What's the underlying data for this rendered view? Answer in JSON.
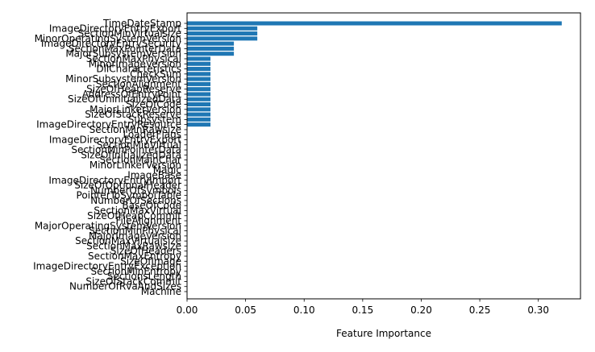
{
  "chart_data": {
    "type": "bar",
    "orientation": "horizontal",
    "title": "",
    "xlabel": "Feature Importance",
    "ylabel": "",
    "xlim": [
      0,
      0.336
    ],
    "xticks": [
      "0.00",
      "0.05",
      "0.10",
      "0.15",
      "0.20",
      "0.25",
      "0.30"
    ],
    "grid": false,
    "bar_color": "#1f77b4",
    "categories": [
      "TimeDateStamp",
      "ImageDirectoryEntryExport",
      "SectionMinVirtualsize",
      "MinorOperatingSystemVersion",
      "ImageDirectoryEntrySecurity",
      "SectionMaxPointerData",
      "MajorSubsystemVersion",
      "SectionMaxPhysical",
      "MinorImageVersion",
      "DllCharacteristics",
      "CheckSum",
      "MinorSubsystemVersion",
      "SectionAlignment",
      "SizeOfHeapReserve",
      "AddressOfEntryPoint",
      "SizeOfUninitializedData",
      "SizeOfCode",
      "MajorLinkerVersion",
      "SizeOfStackReserve",
      "Subsystem",
      "ImageDirectoryEntryResource",
      "SectionMinRawsize",
      "LoaderFlags",
      "ImageDirectoryEntryExport",
      "SectionMinVirtual",
      "SectionMinPointerData",
      "SizeOfInitializedData",
      "SectionMainChar",
      "MinorLinkerVersion",
      "Magic",
      "ImageBase",
      "ImageDirectoryEntryImport",
      "SizeOfOptionalHeader",
      "NumberOfSymbols",
      "PointerToSymbolTable",
      "NumberOfSections",
      "BaseOfCode",
      "SectionMaxVirtual",
      "SizeOfHeapCommit",
      "FileAlignment",
      "MajorOperatingSystemVersion",
      "SectionMinPhysical",
      "MajorImageVersion",
      "SectionMaxVirtualsize",
      "SectionMaxRawsize",
      "SizeOfHeaders",
      "SectionMaxEntropy",
      "SizeOfImage",
      "ImageDirectoryEntryException",
      "SectionMinEntropy",
      "SectionsLength",
      "SizeOfStackCommit",
      "NumberOfRvaAndSizes",
      "Machine"
    ],
    "values": [
      0.32,
      0.06,
      0.06,
      0.06,
      0.04,
      0.04,
      0.04,
      0.02,
      0.02,
      0.02,
      0.02,
      0.02,
      0.02,
      0.02,
      0.02,
      0.02,
      0.02,
      0.02,
      0.02,
      0.02,
      0.02,
      0.0,
      0.0,
      0.0,
      0.0,
      0.0,
      0.0,
      0.0,
      0.0,
      0.0,
      0.0,
      0.0,
      0.0,
      0.0,
      0.0,
      0.0,
      0.0,
      0.0,
      0.0,
      0.0,
      0.0,
      0.0,
      0.0,
      0.0,
      0.0,
      0.0,
      0.0,
      0.0,
      0.0,
      0.0,
      0.0,
      0.0,
      0.0,
      0.0
    ]
  }
}
